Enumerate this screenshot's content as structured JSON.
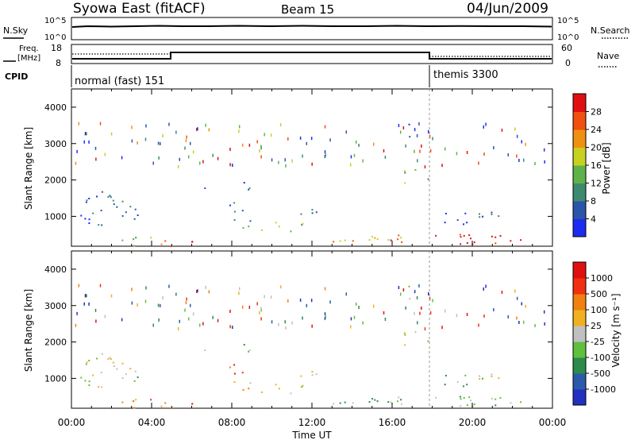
{
  "header": {
    "station": "Syowa East (fitACF)",
    "beam": "Beam 15",
    "date": "04/Jun/2009"
  },
  "top_panels": {
    "nsky_label": "N.Sky",
    "nsearch_label": "N.Search",
    "nsky_ticks": [
      "10^5",
      "10^0"
    ],
    "nsearch_ticks": [
      "10^5",
      "10^0"
    ],
    "freq_label_1": "Freq.",
    "freq_label_2": "[MHz]",
    "freq_ticks": [
      "18",
      "8"
    ],
    "nave_label": "Nave",
    "nave_ticks": [
      "60",
      "0"
    ],
    "cpid_label": "CPID",
    "cpid_segments": [
      {
        "label": "normal (fast) 151"
      },
      {
        "label": "themis 3300"
      }
    ]
  },
  "chart_data": [
    {
      "type": "heatmap",
      "title": "",
      "ylabel": "Slant Range [km]",
      "xlabel": "",
      "ylim": [
        180,
        4500
      ],
      "y_ticks": [
        1000,
        2000,
        3000,
        4000
      ],
      "colorbar_label": "Power [dB]",
      "colorbar_ticks": [
        "4",
        "8",
        "12",
        "16",
        "20",
        "24",
        "28"
      ],
      "colorbar_colors": [
        "#1b2cf0",
        "#2a55a8",
        "#3d8a70",
        "#5fb24a",
        "#c8d020",
        "#f09010",
        "#f05010",
        "#e01010"
      ]
    },
    {
      "type": "heatmap",
      "title": "",
      "ylabel": "Slant Range [km]",
      "xlabel": "Time UT",
      "ylim": [
        180,
        4500
      ],
      "y_ticks": [
        1000,
        2000,
        3000,
        4000
      ],
      "x_ticks": [
        "00:00",
        "04:00",
        "08:00",
        "12:00",
        "16:00",
        "20:00",
        "00:00"
      ],
      "colorbar_label": "Velocity [m s⁻¹]",
      "colorbar_ticks": [
        "1000",
        "500",
        "100",
        "25",
        "-25",
        "-100",
        "-500",
        "-1000"
      ],
      "colorbar_colors": [
        "#2030c0",
        "#2a5aa8",
        "#2e8a4a",
        "#5fc040",
        "#c0c0c0",
        "#f0b020",
        "#f08010",
        "#f03010",
        "#e01010"
      ]
    }
  ]
}
